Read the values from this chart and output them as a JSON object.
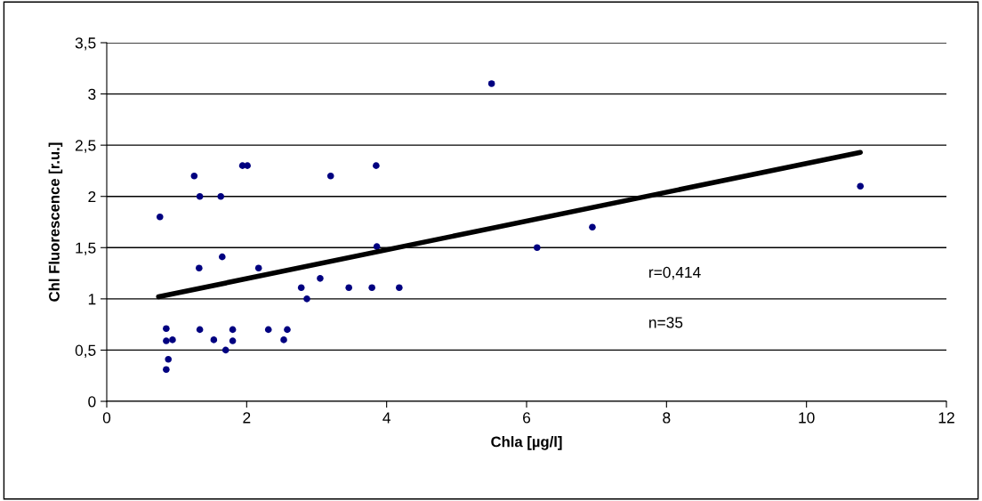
{
  "chart_data": {
    "type": "scatter",
    "xlabel": "Chla [µg/l]",
    "ylabel": "Chl Fluorescence [r.u.]",
    "xlim": [
      0,
      12
    ],
    "xticks": [
      0,
      2,
      4,
      6,
      8,
      10,
      12
    ],
    "ylim": [
      0,
      3.5
    ],
    "yticks": [
      {
        "value": 0,
        "label": "0"
      },
      {
        "value": 0.5,
        "label": "0,5"
      },
      {
        "value": 1,
        "label": "1"
      },
      {
        "value": 1.5,
        "label": "1,5"
      },
      {
        "value": 2,
        "label": "2"
      },
      {
        "value": 2.5,
        "label": "2,5"
      },
      {
        "value": 3,
        "label": "3"
      },
      {
        "value": 3.5,
        "label": "3,5"
      }
    ],
    "grid": "y",
    "legend": false,
    "x": [
      0.76,
      0.85,
      0.85,
      0.94,
      0.88,
      0.85,
      1.25,
      1.33,
      1.63,
      1.94,
      2.01,
      1.32,
      1.65,
      2.17,
      2.78,
      2.86,
      1.33,
      1.53,
      1.7,
      1.8,
      1.8,
      2.31,
      2.53,
      2.58,
      3.2,
      3.85,
      3.86,
      3.05,
      3.46,
      3.79,
      4.18,
      5.5,
      6.15,
      6.94,
      10.77
    ],
    "series": [
      {
        "type": "scatter",
        "color": "#000080",
        "values": [
          1.8,
          0.71,
          0.59,
          0.6,
          0.41,
          0.31,
          2.2,
          2.0,
          2.0,
          2.3,
          2.3,
          1.3,
          1.41,
          1.3,
          1.11,
          1.0,
          0.7,
          0.6,
          0.5,
          0.7,
          0.59,
          0.7,
          0.6,
          0.7,
          2.2,
          2.3,
          1.51,
          1.2,
          1.11,
          1.11,
          1.11,
          3.1,
          1.5,
          1.7,
          2.1
        ]
      },
      {
        "type": "line",
        "color": "#000000",
        "x": [
          0.74,
          10.77
        ],
        "values": [
          1.02,
          2.43
        ]
      }
    ],
    "annotations": [
      "r=0,414",
      "n=35"
    ]
  }
}
